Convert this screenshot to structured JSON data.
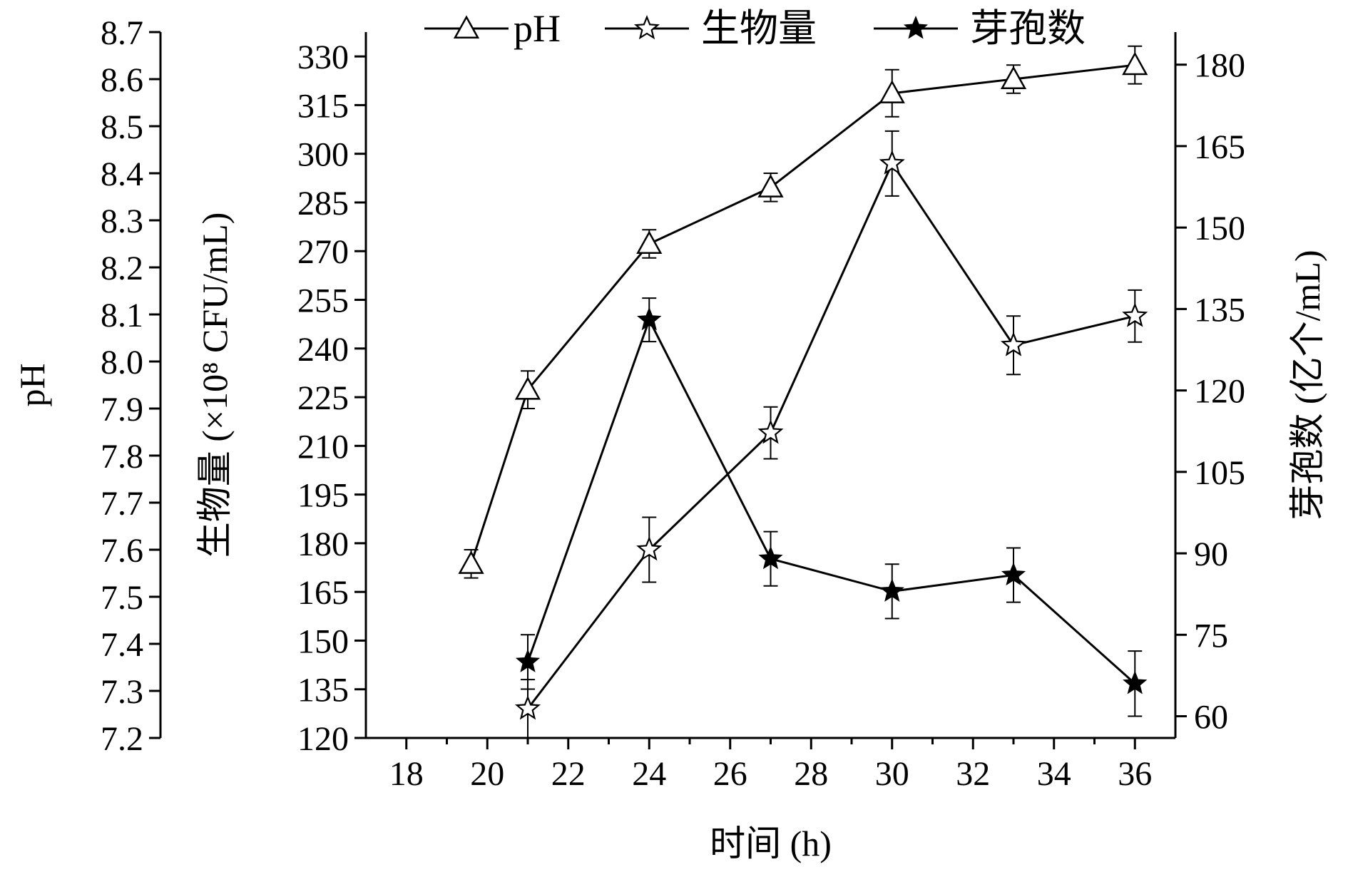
{
  "chart_data": {
    "type": "line",
    "xlabel": "时间 (h)",
    "x_ticks": [
      18,
      20,
      22,
      24,
      26,
      28,
      30,
      32,
      34,
      36
    ],
    "xlim": [
      17,
      37
    ],
    "axes": {
      "ph": {
        "label": "pH",
        "ticks": [
          "7.2",
          "7.3",
          "7.4",
          "7.5",
          "7.6",
          "7.7",
          "7.8",
          "7.9",
          "8.0",
          "8.1",
          "8.2",
          "8.3",
          "8.4",
          "8.5",
          "8.6",
          "8.7"
        ],
        "lim": [
          7.2,
          8.7
        ]
      },
      "biomass": {
        "label": "生物量 (×10⁸ CFU/mL)",
        "ticks": [
          "120",
          "135",
          "150",
          "165",
          "180",
          "195",
          "210",
          "225",
          "240",
          "255",
          "270",
          "285",
          "300",
          "315",
          "330"
        ],
        "lim": [
          120,
          337.5
        ]
      },
      "spores": {
        "label": "芽孢数 (亿个/mL)",
        "ticks": [
          "60",
          "75",
          "90",
          "105",
          "120",
          "135",
          "150",
          "165",
          "180"
        ],
        "lim": [
          56,
          186
        ]
      }
    },
    "series": [
      {
        "name": "pH",
        "axis": "ph",
        "marker": "open-triangle",
        "x": [
          19.6,
          21,
          24,
          27,
          30,
          33,
          36
        ],
        "y": [
          7.57,
          7.94,
          8.25,
          8.37,
          8.57,
          8.6,
          8.63
        ],
        "err": [
          0.03,
          0.04,
          0.03,
          0.03,
          0.05,
          0.03,
          0.04
        ]
      },
      {
        "name": "生物量",
        "axis": "biomass",
        "marker": "open-star",
        "x": [
          21,
          24,
          27,
          30,
          33,
          36
        ],
        "y": [
          129,
          178,
          214,
          297,
          241,
          250
        ],
        "err": [
          9,
          10,
          8,
          10,
          9,
          8
        ]
      },
      {
        "name": "芽孢数",
        "axis": "spores",
        "marker": "filled-star",
        "x": [
          21,
          24,
          27,
          30,
          33,
          36
        ],
        "y": [
          70,
          133,
          89,
          83,
          86,
          66
        ],
        "err": [
          5,
          4,
          5,
          5,
          5,
          6
        ]
      }
    ],
    "legend": "top-center",
    "grid": false
  }
}
